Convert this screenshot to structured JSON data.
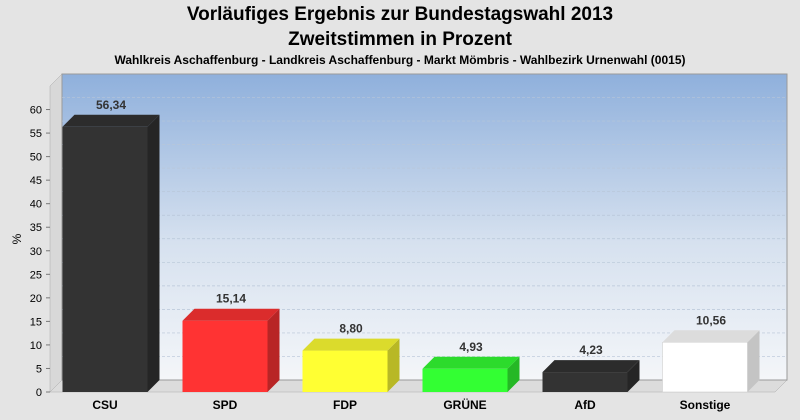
{
  "title": "Vorläufiges Ergebnis zur Bundestagswahl 2013",
  "title2": "Zweitstimmen in Prozent",
  "subtitle": "Wahlkreis Aschaffenburg - Landkreis Aschaffenburg - Markt Mömbris - Wahlbezirk Urnenwahl (0015)",
  "chart_data": {
    "type": "bar",
    "title": "Vorläufiges Ergebnis zur Bundestagswahl 2013",
    "subtitle": "Zweitstimmen in Prozent",
    "xlabel": "",
    "ylabel": "%",
    "ylim": [
      0,
      65
    ],
    "yticks": [
      0,
      5,
      10,
      15,
      20,
      25,
      30,
      35,
      40,
      45,
      50,
      55,
      60
    ],
    "grid": true,
    "categories": [
      "CSU",
      "SPD",
      "FDP",
      "GRÜNE",
      "AfD",
      "Sonstige"
    ],
    "values": [
      56.34,
      15.14,
      8.8,
      4.93,
      4.23,
      10.56
    ],
    "value_labels": [
      "56,34",
      "15,14",
      "8,80",
      "4,93",
      "4,23",
      "10,56"
    ],
    "colors": [
      "#333333",
      "#ff3333",
      "#ffff33",
      "#33ff33",
      "#333333",
      "#ffffff"
    ]
  }
}
